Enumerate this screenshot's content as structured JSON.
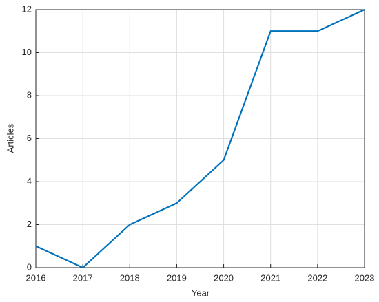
{
  "chart_data": {
    "type": "line",
    "xlabel": "Year",
    "ylabel": "Articles",
    "x": [
      2016,
      2017,
      2018,
      2019,
      2020,
      2021,
      2022,
      2023
    ],
    "series": [
      {
        "color": "#0072bd",
        "values": [
          1,
          0,
          2,
          3,
          5,
          11,
          11,
          12
        ]
      }
    ],
    "xlim": [
      2016,
      2023
    ],
    "xticks": [
      2016,
      2017,
      2018,
      2019,
      2020,
      2021,
      2022,
      2023
    ],
    "ylim": [
      0,
      12
    ],
    "yticks": [
      0,
      2,
      4,
      6,
      8,
      10,
      12
    ],
    "grid": true
  }
}
